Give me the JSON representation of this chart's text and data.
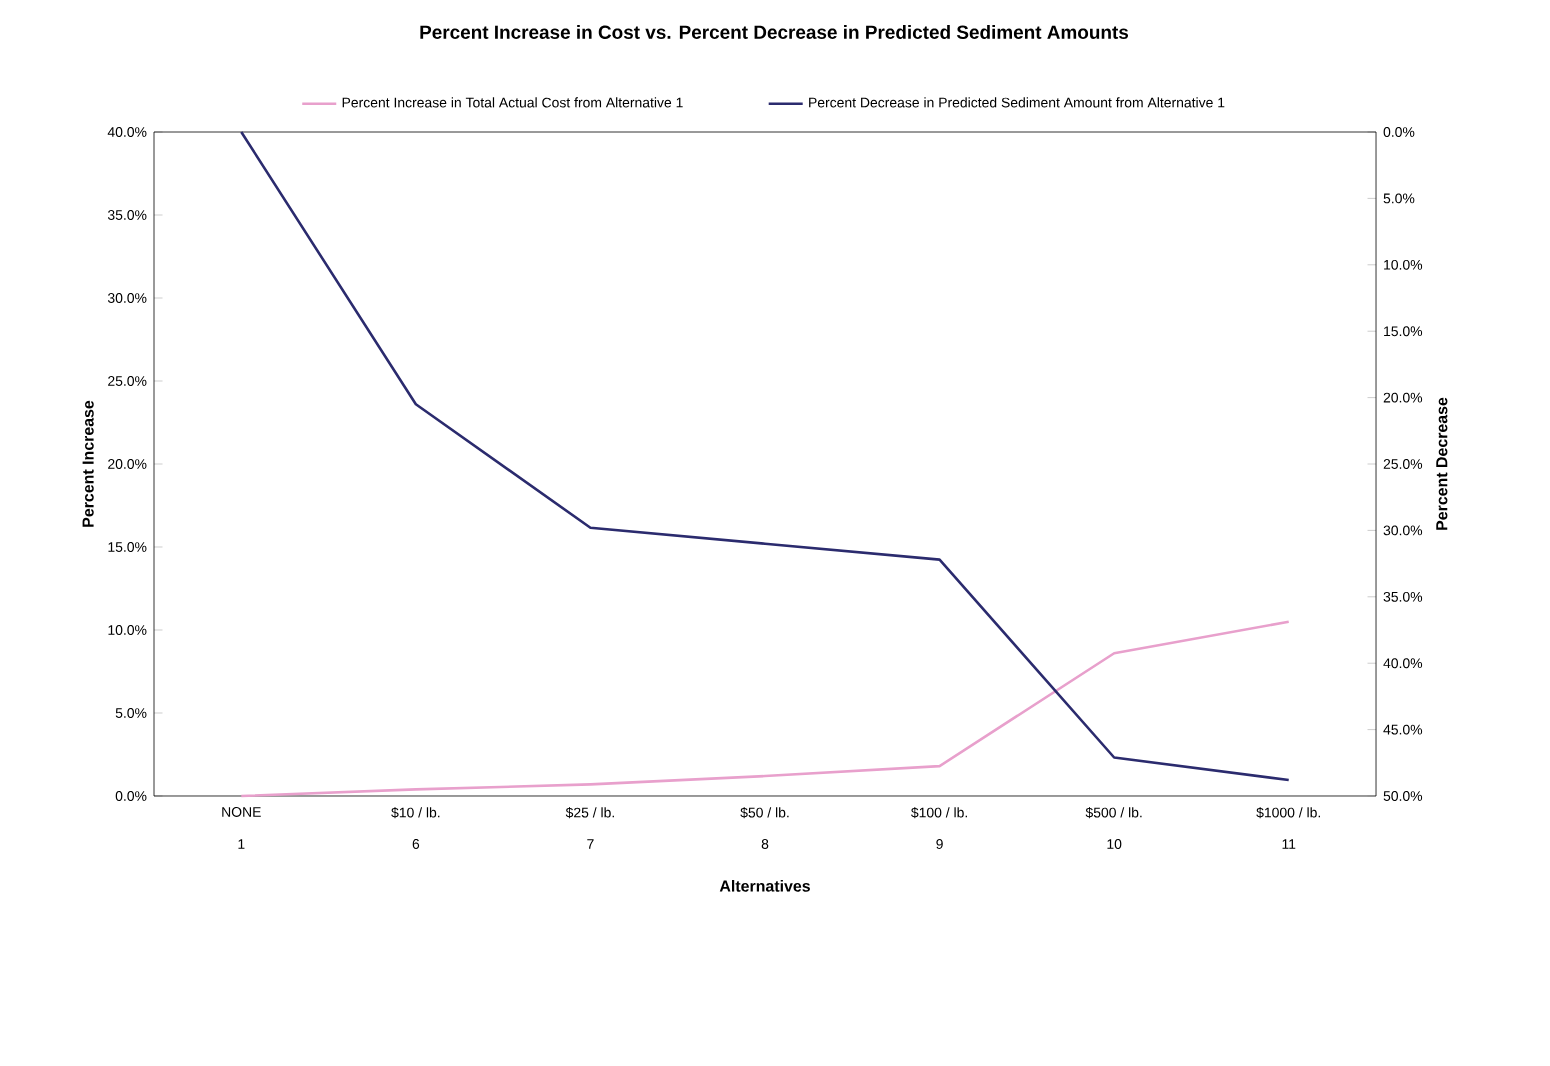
{
  "chart_data": {
    "type": "line",
    "title": "Percent Increase in Cost vs. Percent Decrease in Predicted Sediment Amounts",
    "xlabel": "Alternatives",
    "ylabel": "Percent Increase",
    "y2label": "Percent Decrease",
    "categories": [
      "NONE",
      "$10 / lb.",
      "$25 / lb.",
      "$50 / lb.",
      "$100 / lb.",
      "$500 / lb.",
      "$1000 / lb."
    ],
    "annotations": [
      "1",
      "6",
      "7",
      "8",
      "9",
      "10",
      "11"
    ],
    "series": [
      {
        "name": "Percent Increase in Total Actual Cost from Alternative 1",
        "color": "#e8a0cc",
        "values": [
          0,
          0.4,
          0.7,
          1.2,
          1.8,
          8.6,
          10.5
        ]
      },
      {
        "name": "Percent Decrease in Predicted Sediment Amount from Alternative 1",
        "color": "#2b2b6e",
        "axis": "y2",
        "values": [
          0,
          20.5,
          29.8,
          31,
          32.2,
          47.1,
          48.8
        ]
      }
    ],
    "ylim": [
      0,
      40
    ],
    "yticks": [
      {
        "value": 0,
        "label": "0.0%"
      },
      {
        "value": 5,
        "label": "5.0%"
      },
      {
        "value": 10,
        "label": "10.0%"
      },
      {
        "value": 15,
        "label": "15.0%"
      },
      {
        "value": 20,
        "label": "20.0%"
      },
      {
        "value": 25,
        "label": "25.0%"
      },
      {
        "value": 30,
        "label": "30.0%"
      },
      {
        "value": 35,
        "label": "35.0%"
      },
      {
        "value": 40,
        "label": "40.0%"
      }
    ],
    "y2lim": [
      50,
      0
    ],
    "y2ticks": [
      {
        "value": 0,
        "label": "0.0%"
      },
      {
        "value": 5,
        "label": "5.0%"
      },
      {
        "value": 10,
        "label": "10.0%"
      },
      {
        "value": 15,
        "label": "15.0%"
      },
      {
        "value": 20,
        "label": "20.0%"
      },
      {
        "value": 25,
        "label": "25.0%"
      },
      {
        "value": 30,
        "label": "30.0%"
      },
      {
        "value": 35,
        "label": "35.0%"
      },
      {
        "value": 40,
        "label": "40.0%"
      },
      {
        "value": 45,
        "label": "45.0%"
      },
      {
        "value": 50,
        "label": "50.0%"
      }
    ],
    "legend": "top",
    "grid": false,
    "marker": "none",
    "line_style": "solid"
  }
}
